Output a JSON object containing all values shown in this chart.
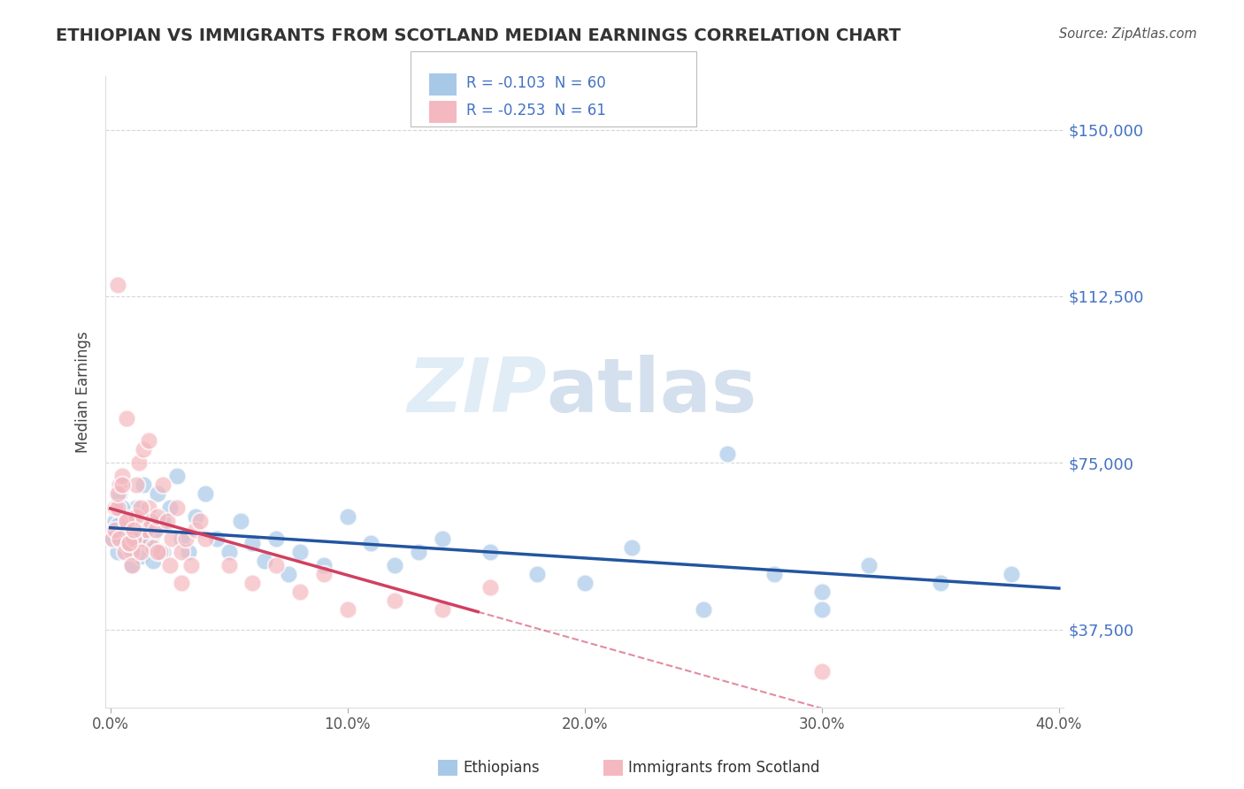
{
  "title": "ETHIOPIAN VS IMMIGRANTS FROM SCOTLAND MEDIAN EARNINGS CORRELATION CHART",
  "source": "Source: ZipAtlas.com",
  "ylabel": "Median Earnings",
  "watermark_zip": "ZIP",
  "watermark_atlas": "atlas",
  "xlim": [
    -0.002,
    0.402
  ],
  "ylim": [
    20000,
    162000
  ],
  "yticks": [
    37500,
    75000,
    112500,
    150000
  ],
  "ytick_labels": [
    "$37,500",
    "$75,000",
    "$112,500",
    "$150,000"
  ],
  "xticks": [
    0.0,
    0.1,
    0.2,
    0.3,
    0.4
  ],
  "xtick_labels": [
    "0.0%",
    "10.0%",
    "20.0%",
    "30.0%",
    "40.0%"
  ],
  "blue_color": "#a8c8e8",
  "pink_color": "#f4b8c0",
  "blue_line_color": "#2255a0",
  "pink_line_color": "#d04060",
  "legend_text1": "R = -0.103  N = 60",
  "legend_text2": "R = -0.253  N = 61",
  "legend_label1": "Ethiopians",
  "legend_label2": "Immigrants from Scotland",
  "background_color": "#ffffff",
  "grid_color": "#cccccc",
  "axis_color": "#4472c4",
  "title_color": "#333333",
  "eth_x": [
    0.001,
    0.002,
    0.003,
    0.004,
    0.005,
    0.006,
    0.007,
    0.008,
    0.009,
    0.01,
    0.011,
    0.012,
    0.013,
    0.014,
    0.015,
    0.016,
    0.017,
    0.018,
    0.02,
    0.022,
    0.025,
    0.028,
    0.03,
    0.033,
    0.036,
    0.04,
    0.045,
    0.05,
    0.055,
    0.06,
    0.065,
    0.07,
    0.075,
    0.08,
    0.09,
    0.1,
    0.11,
    0.12,
    0.13,
    0.14,
    0.16,
    0.18,
    0.2,
    0.22,
    0.25,
    0.28,
    0.3,
    0.32,
    0.35,
    0.38,
    0.003,
    0.005,
    0.007,
    0.009,
    0.012,
    0.015,
    0.018,
    0.022,
    0.26,
    0.3
  ],
  "eth_y": [
    58000,
    62000,
    55000,
    68000,
    60000,
    57000,
    63000,
    56000,
    52000,
    60000,
    65000,
    58000,
    54000,
    70000,
    61000,
    57000,
    63000,
    59000,
    68000,
    62000,
    65000,
    72000,
    58000,
    55000,
    63000,
    68000,
    58000,
    55000,
    62000,
    57000,
    53000,
    58000,
    50000,
    55000,
    52000,
    63000,
    57000,
    52000,
    55000,
    58000,
    55000,
    50000,
    48000,
    56000,
    42000,
    50000,
    46000,
    52000,
    48000,
    50000,
    61000,
    65000,
    59000,
    56000,
    60000,
    58000,
    53000,
    55000,
    77000,
    42000
  ],
  "sco_x": [
    0.001,
    0.002,
    0.003,
    0.004,
    0.005,
    0.006,
    0.007,
    0.008,
    0.009,
    0.01,
    0.011,
    0.012,
    0.013,
    0.014,
    0.015,
    0.016,
    0.017,
    0.018,
    0.019,
    0.02,
    0.021,
    0.022,
    0.024,
    0.026,
    0.028,
    0.03,
    0.032,
    0.034,
    0.036,
    0.038,
    0.04,
    0.05,
    0.06,
    0.07,
    0.08,
    0.09,
    0.1,
    0.12,
    0.14,
    0.16,
    0.002,
    0.003,
    0.004,
    0.006,
    0.007,
    0.008,
    0.009,
    0.01,
    0.011,
    0.013,
    0.003,
    0.005,
    0.007,
    0.008,
    0.01,
    0.013,
    0.016,
    0.02,
    0.025,
    0.03,
    0.3
  ],
  "sco_y": [
    58000,
    65000,
    115000,
    70000,
    72000,
    60000,
    85000,
    62000,
    55000,
    63000,
    70000,
    75000,
    58000,
    78000,
    60000,
    65000,
    62000,
    56000,
    60000,
    63000,
    55000,
    70000,
    62000,
    58000,
    65000,
    55000,
    58000,
    52000,
    60000,
    62000,
    58000,
    52000,
    48000,
    52000,
    46000,
    50000,
    42000,
    44000,
    42000,
    47000,
    60000,
    65000,
    58000,
    55000,
    62000,
    57000,
    52000,
    58000,
    63000,
    55000,
    68000,
    70000,
    62000,
    57000,
    60000,
    65000,
    80000,
    55000,
    52000,
    48000,
    28000
  ]
}
